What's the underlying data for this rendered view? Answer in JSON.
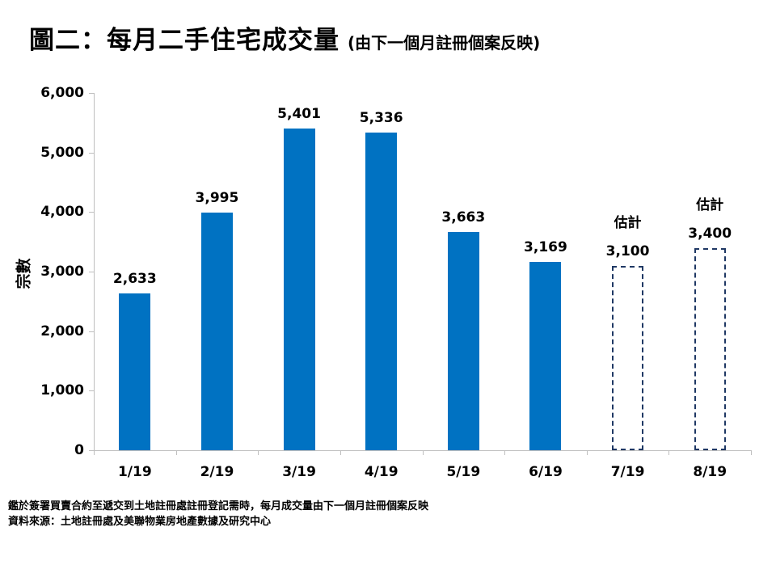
{
  "title": {
    "main": "圖二：每月二手住宅成交量",
    "sub": "(由下一個月註冊個案反映)"
  },
  "chart_data": {
    "type": "bar",
    "title": "圖二：每月二手住宅成交量 (由下一個月註冊個案反映)",
    "xlabel": "",
    "ylabel": "宗數",
    "ylim": [
      0,
      6000
    ],
    "ytick_interval": 1000,
    "yticks": [
      "0",
      "1,000",
      "2,000",
      "3,000",
      "4,000",
      "5,000",
      "6,000"
    ],
    "categories": [
      "1/19",
      "2/19",
      "3/19",
      "4/19",
      "5/19",
      "6/19",
      "7/19",
      "8/19"
    ],
    "values": [
      2633,
      3995,
      5401,
      5336,
      3663,
      3169,
      3100,
      3400
    ],
    "value_labels": [
      "2,633",
      "3,995",
      "5,401",
      "5,336",
      "3,663",
      "3,169",
      "3,100",
      "3,400"
    ],
    "estimated": [
      false,
      false,
      false,
      false,
      false,
      false,
      true,
      true
    ],
    "estimated_label": "估計",
    "bar_color": "#0072C2",
    "estimated_outline_color": "#1F3864",
    "axis_color": "#BFBFBF",
    "grid": false,
    "legend": "none"
  },
  "footnotes": [
    "鑑於簽署買賣合約至遞交到土地註冊處註冊登記需時，每月成交量由下一個月註冊個案反映",
    "資料來源：土地註冊處及美聯物業房地產數據及研究中心"
  ]
}
